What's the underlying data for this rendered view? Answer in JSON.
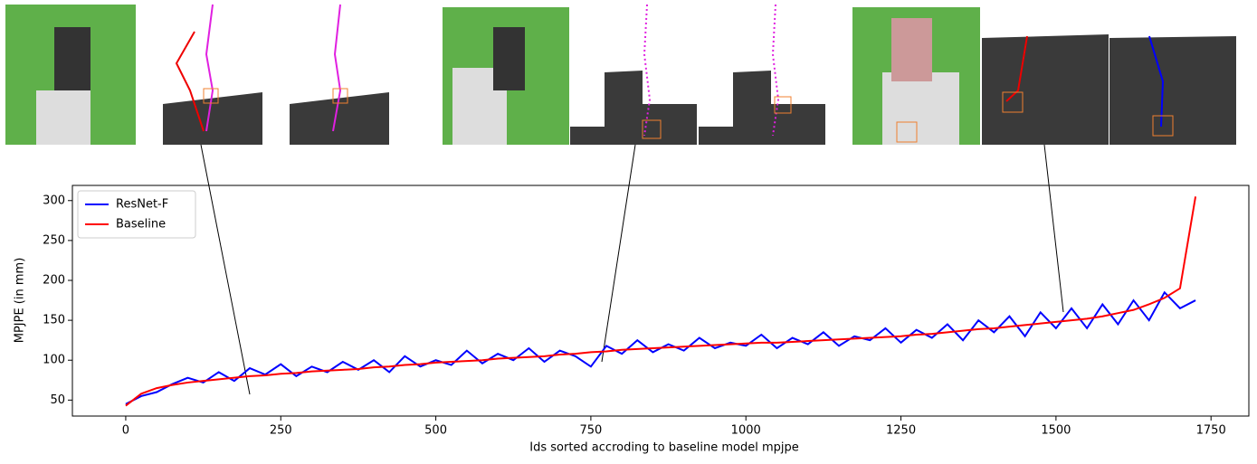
{
  "chart_data": {
    "type": "line",
    "xlabel": "Ids sorted accroding to baseline model mpjpe",
    "ylabel": "MPJPE (in mm)",
    "x": [
      0,
      25,
      50,
      75,
      100,
      125,
      150,
      175,
      200,
      225,
      250,
      275,
      300,
      325,
      350,
      375,
      400,
      425,
      450,
      475,
      500,
      525,
      550,
      575,
      600,
      625,
      650,
      675,
      700,
      725,
      750,
      775,
      800,
      825,
      850,
      875,
      900,
      925,
      950,
      975,
      1000,
      1025,
      1050,
      1075,
      1100,
      1125,
      1150,
      1175,
      1200,
      1225,
      1250,
      1275,
      1300,
      1325,
      1350,
      1375,
      1400,
      1425,
      1450,
      1475,
      1500,
      1525,
      1550,
      1575,
      1600,
      1625,
      1650,
      1675,
      1700,
      1725
    ],
    "series": [
      {
        "name": "ResNet-F",
        "color": "#0000ff",
        "values": [
          45,
          55,
          60,
          70,
          78,
          72,
          85,
          74,
          90,
          82,
          95,
          80,
          92,
          85,
          98,
          88,
          100,
          85,
          105,
          92,
          100,
          94,
          112,
          96,
          108,
          100,
          115,
          98,
          112,
          105,
          92,
          118,
          108,
          125,
          110,
          120,
          112,
          128,
          115,
          122,
          118,
          132,
          115,
          128,
          120,
          135,
          118,
          130,
          125,
          140,
          122,
          138,
          128,
          145,
          125,
          150,
          135,
          155,
          130,
          160,
          140,
          165,
          140,
          170,
          145,
          175,
          150,
          185,
          165,
          175
        ]
      },
      {
        "name": "Baseline",
        "color": "#ff0000",
        "values": [
          43,
          58,
          65,
          69,
          72,
          74,
          76,
          78,
          80,
          81,
          83,
          84,
          86,
          87,
          88,
          89,
          91,
          92,
          94,
          95,
          97,
          98,
          99,
          100,
          102,
          103,
          104,
          105,
          107,
          108,
          110,
          111,
          113,
          114,
          115,
          116,
          117,
          118,
          119,
          120,
          121,
          122,
          122,
          123,
          124,
          125,
          126,
          127,
          128,
          129,
          130,
          132,
          133,
          135,
          137,
          139,
          140,
          142,
          144,
          146,
          148,
          150,
          152,
          155,
          159,
          163,
          170,
          178,
          190,
          305
        ]
      }
    ],
    "xlim": [
      -86,
      1811
    ],
    "ylim": [
      30,
      319
    ],
    "xticks": [
      0,
      250,
      500,
      750,
      1000,
      1250,
      1500,
      1750
    ],
    "yticks": [
      50,
      100,
      150,
      200,
      250,
      300
    ],
    "legend": "upper-left",
    "grid": false
  }
}
